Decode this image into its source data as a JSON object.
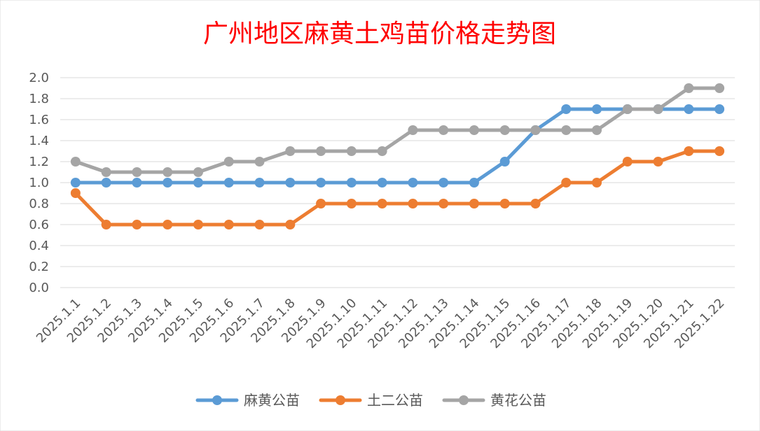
{
  "chart_data": {
    "type": "line",
    "title": "广州地区麻黄土鸡苗价格走势图",
    "title_color": "#ff0000",
    "xlabel": "",
    "ylabel": "",
    "categories": [
      "2025.1.1",
      "2025.1.2",
      "2025.1.3",
      "2025.1.4",
      "2025.1.5",
      "2025.1.6",
      "2025.1.7",
      "2025.1.8",
      "2025.1.9",
      "2025.1.10",
      "2025.1.11",
      "2025.1.12",
      "2025.1.13",
      "2025.1.14",
      "2025.1.15",
      "2025.1.16",
      "2025.1.17",
      "2025.1.18",
      "2025.1.19",
      "2025.1.20",
      "2025.1.21",
      "2025.1.22"
    ],
    "ylim": [
      0,
      2.0
    ],
    "yticks": [
      "0.0",
      "0.2",
      "0.4",
      "0.6",
      "0.8",
      "1.0",
      "1.2",
      "1.4",
      "1.6",
      "1.8",
      "2.0"
    ],
    "grid": true,
    "legend_position": "bottom",
    "series": [
      {
        "name": "麻黄公苗",
        "color": "#5b9bd5",
        "values": [
          1.0,
          1.0,
          1.0,
          1.0,
          1.0,
          1.0,
          1.0,
          1.0,
          1.0,
          1.0,
          1.0,
          1.0,
          1.0,
          1.0,
          1.2,
          1.5,
          1.7,
          1.7,
          1.7,
          1.7,
          1.7,
          1.7
        ]
      },
      {
        "name": "土二公苗",
        "color": "#ed7d31",
        "values": [
          0.9,
          0.6,
          0.6,
          0.6,
          0.6,
          0.6,
          0.6,
          0.6,
          0.8,
          0.8,
          0.8,
          0.8,
          0.8,
          0.8,
          0.8,
          0.8,
          1.0,
          1.0,
          1.2,
          1.2,
          1.3,
          1.3
        ]
      },
      {
        "name": "黄花公苗",
        "color": "#a5a5a5",
        "values": [
          1.2,
          1.1,
          1.1,
          1.1,
          1.1,
          1.2,
          1.2,
          1.3,
          1.3,
          1.3,
          1.3,
          1.5,
          1.5,
          1.5,
          1.5,
          1.5,
          1.5,
          1.5,
          1.7,
          1.7,
          1.9,
          1.9
        ]
      }
    ]
  }
}
